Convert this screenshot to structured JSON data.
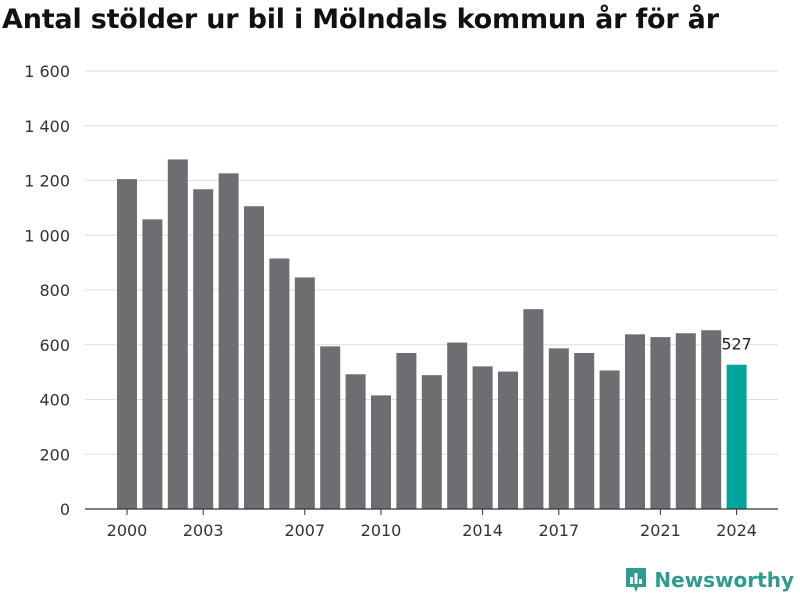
{
  "chart_data": {
    "type": "bar",
    "title": "Antal stölder ur bil i Mölndals kommun år för år",
    "xlabel": "",
    "ylabel": "",
    "ylim": [
      0,
      1600
    ],
    "yticks": [
      0,
      200,
      400,
      600,
      800,
      1000,
      1200,
      1400,
      1600
    ],
    "ytick_labels": [
      "0",
      "200",
      "400",
      "600",
      "800",
      "1 000",
      "1 200",
      "1 400",
      "1 600"
    ],
    "xtick_labels": [
      "2000",
      "2003",
      "2007",
      "2010",
      "2014",
      "2017",
      "2021",
      "2024"
    ],
    "x": [
      2000,
      2001,
      2002,
      2003,
      2004,
      2005,
      2006,
      2007,
      2008,
      2009,
      2010,
      2011,
      2012,
      2013,
      2014,
      2015,
      2016,
      2017,
      2018,
      2019,
      2020,
      2021,
      2022,
      2023,
      2024
    ],
    "values": [
      1205,
      1058,
      1277,
      1168,
      1226,
      1106,
      915,
      846,
      594,
      492,
      415,
      570,
      489,
      608,
      521,
      502,
      730,
      587,
      570,
      506,
      638,
      628,
      642,
      653,
      527
    ],
    "highlight_index": 24,
    "highlight_label": "527",
    "colors": {
      "bar": "#6d6d72",
      "highlight": "#00a49a",
      "grid": "#dcdcdc"
    },
    "grid": true,
    "legend": "none"
  },
  "brand": {
    "name": "Newsworthy",
    "logo_icon": "newsworthy-logo-icon"
  }
}
